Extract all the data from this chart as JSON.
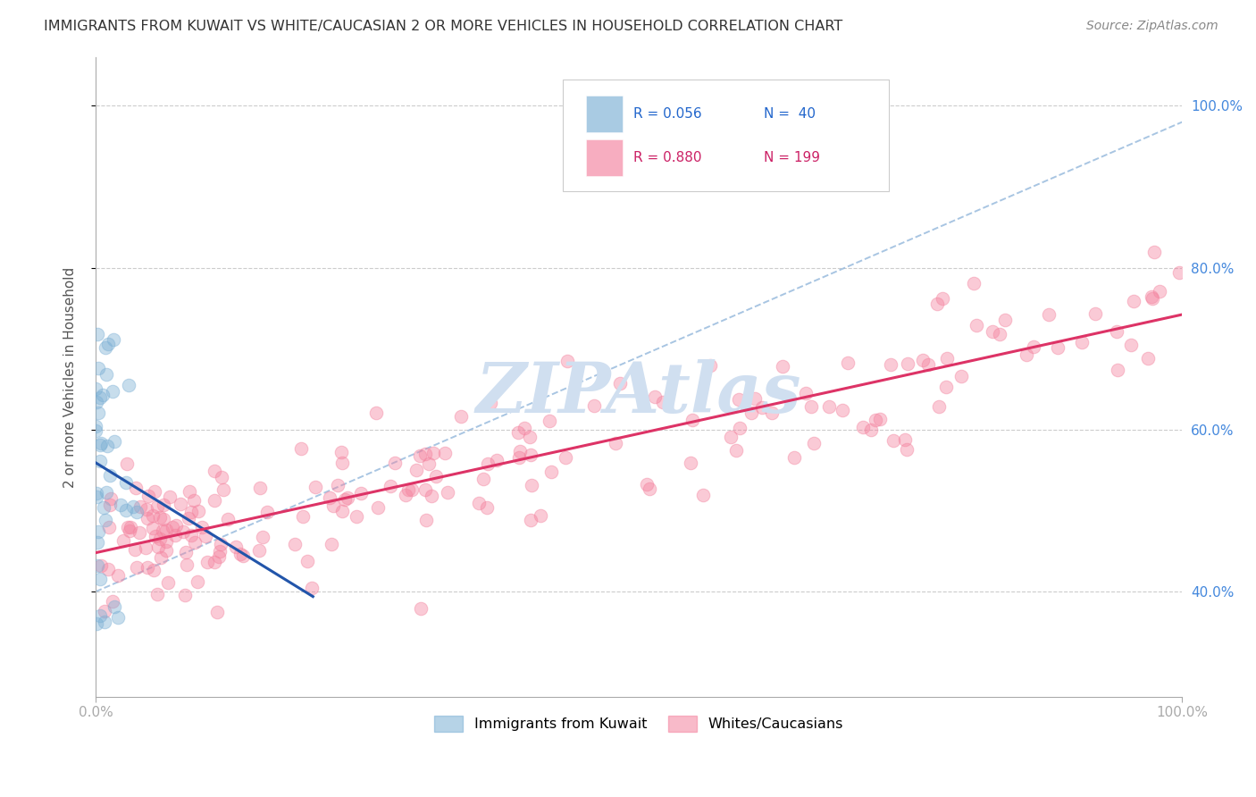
{
  "title": "IMMIGRANTS FROM KUWAIT VS WHITE/CAUCASIAN 2 OR MORE VEHICLES IN HOUSEHOLD CORRELATION CHART",
  "source": "Source: ZipAtlas.com",
  "ylabel": "2 or more Vehicles in Household",
  "blue_color": "#7bafd4",
  "pink_color": "#f4829e",
  "blue_line_color": "#2255aa",
  "pink_line_color": "#dd3366",
  "dashed_line_color": "#99bbdd",
  "legend_blue_r": "R = 0.056",
  "legend_blue_n": "N =  40",
  "legend_pink_r": "R = 0.880",
  "legend_pink_n": "N = 199",
  "watermark": "ZIPAtlas",
  "watermark_color": "#d0dff0",
  "xlim": [
    0.0,
    1.0
  ],
  "ylim": [
    0.27,
    1.06
  ],
  "ytick_values": [
    0.4,
    0.6,
    0.8,
    1.0
  ],
  "ytick_labels": [
    "40.0%",
    "60.0%",
    "80.0%",
    "100.0%"
  ],
  "blue_seed": 12,
  "pink_seed": 7
}
